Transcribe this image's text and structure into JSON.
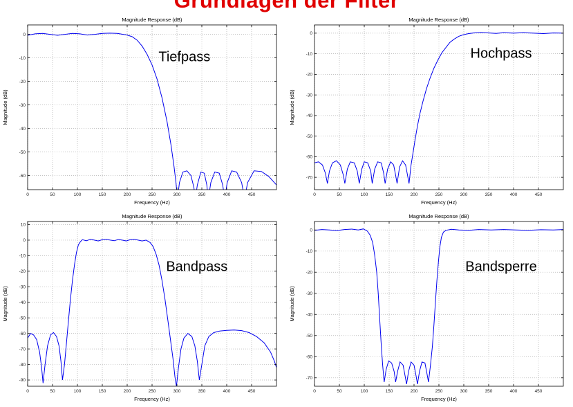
{
  "title": {
    "text": "Grundlagen der Filter",
    "color": "#e00000"
  },
  "chart_data": [
    {
      "type": "line",
      "name": "tiefpass",
      "title": "Magnitude Response (dB)",
      "xlabel": "Frequency (Hz)",
      "ylabel": "Magnitude (dB)",
      "line_color": "#0000ee",
      "grid": true,
      "legend_position": "none",
      "xlim": [
        0,
        500
      ],
      "ylim": [
        -66,
        4
      ],
      "xticks": [
        0,
        50,
        100,
        150,
        200,
        250,
        300,
        350,
        400,
        450
      ],
      "yticks": [
        0,
        -10,
        -20,
        -30,
        -40,
        -50,
        -60
      ],
      "annotation": {
        "text": "Tiefpass",
        "fx": 0.63,
        "fy": 0.22
      },
      "points": [
        [
          0,
          -0.4
        ],
        [
          15,
          0.2
        ],
        [
          30,
          0.4
        ],
        [
          45,
          0
        ],
        [
          60,
          -0.4
        ],
        [
          75,
          0
        ],
        [
          90,
          0.4
        ],
        [
          105,
          0.2
        ],
        [
          120,
          -0.3
        ],
        [
          135,
          0
        ],
        [
          150,
          0.4
        ],
        [
          165,
          0.5
        ],
        [
          180,
          0.4
        ],
        [
          192,
          0
        ],
        [
          200,
          -0.3
        ],
        [
          210,
          -1
        ],
        [
          220,
          -2.5
        ],
        [
          230,
          -5
        ],
        [
          240,
          -8.5
        ],
        [
          250,
          -13
        ],
        [
          260,
          -19
        ],
        [
          270,
          -27
        ],
        [
          280,
          -37
        ],
        [
          288,
          -47
        ],
        [
          294,
          -56
        ],
        [
          298,
          -63
        ],
        [
          301,
          -70
        ],
        [
          305,
          -63
        ],
        [
          312,
          -58.5
        ],
        [
          320,
          -58
        ],
        [
          328,
          -60
        ],
        [
          334,
          -65
        ],
        [
          337,
          -70
        ],
        [
          341,
          -64
        ],
        [
          348,
          -58.5
        ],
        [
          355,
          -59
        ],
        [
          360,
          -64
        ],
        [
          363,
          -70
        ],
        [
          368,
          -63
        ],
        [
          376,
          -58.5
        ],
        [
          385,
          -59
        ],
        [
          392,
          -64
        ],
        [
          396,
          -70
        ],
        [
          401,
          -63
        ],
        [
          410,
          -58
        ],
        [
          420,
          -58.5
        ],
        [
          430,
          -63
        ],
        [
          436,
          -70
        ],
        [
          442,
          -63
        ],
        [
          455,
          -58
        ],
        [
          470,
          -58.3
        ],
        [
          485,
          -60.5
        ],
        [
          500,
          -64
        ]
      ]
    },
    {
      "type": "line",
      "name": "hochpass",
      "title": "Magnitude Response (dB)",
      "xlabel": "Frequency (Hz)",
      "ylabel": "Magnitude (dB)",
      "line_color": "#0000ee",
      "grid": true,
      "legend_position": "none",
      "xlim": [
        0,
        500
      ],
      "ylim": [
        -76,
        4
      ],
      "xticks": [
        0,
        50,
        100,
        150,
        200,
        250,
        300,
        350,
        400,
        450
      ],
      "yticks": [
        0,
        -10,
        -20,
        -30,
        -40,
        -50,
        -60,
        -70
      ],
      "annotation": {
        "text": "Hochpass",
        "fx": 0.75,
        "fy": 0.2
      },
      "points": [
        [
          0,
          -63
        ],
        [
          8,
          -62.5
        ],
        [
          16,
          -64
        ],
        [
          22,
          -68
        ],
        [
          26,
          -73
        ],
        [
          30,
          -67
        ],
        [
          36,
          -63
        ],
        [
          44,
          -62
        ],
        [
          52,
          -64
        ],
        [
          58,
          -69
        ],
        [
          61,
          -73
        ],
        [
          66,
          -66
        ],
        [
          72,
          -62.5
        ],
        [
          80,
          -63
        ],
        [
          86,
          -67
        ],
        [
          90,
          -73
        ],
        [
          95,
          -66
        ],
        [
          100,
          -62.5
        ],
        [
          107,
          -63
        ],
        [
          113,
          -67
        ],
        [
          116,
          -73
        ],
        [
          121,
          -66
        ],
        [
          127,
          -62.5
        ],
        [
          134,
          -63
        ],
        [
          139,
          -68
        ],
        [
          142,
          -73
        ],
        [
          147,
          -66
        ],
        [
          153,
          -62.5
        ],
        [
          159,
          -64
        ],
        [
          163,
          -69
        ],
        [
          166,
          -73
        ],
        [
          171,
          -65
        ],
        [
          177,
          -62
        ],
        [
          183,
          -64
        ],
        [
          187,
          -69
        ],
        [
          190,
          -73
        ],
        [
          194,
          -64
        ],
        [
          198,
          -58
        ],
        [
          202,
          -52
        ],
        [
          207,
          -45
        ],
        [
          212,
          -39
        ],
        [
          218,
          -33
        ],
        [
          225,
          -27
        ],
        [
          232,
          -22
        ],
        [
          240,
          -17
        ],
        [
          248,
          -13
        ],
        [
          256,
          -9.5
        ],
        [
          264,
          -7
        ],
        [
          272,
          -4.5
        ],
        [
          280,
          -3
        ],
        [
          290,
          -1.5
        ],
        [
          300,
          -0.7
        ],
        [
          310,
          -0.2
        ],
        [
          320,
          0.1
        ],
        [
          335,
          0.3
        ],
        [
          350,
          0.1
        ],
        [
          365,
          -0.1
        ],
        [
          380,
          0.2
        ],
        [
          400,
          0
        ],
        [
          420,
          0.2
        ],
        [
          440,
          0
        ],
        [
          460,
          -0.2
        ],
        [
          480,
          0.1
        ],
        [
          500,
          0
        ]
      ]
    },
    {
      "type": "line",
      "name": "bandpass",
      "title": "Magnitude Response (dB)",
      "xlabel": "Frequency (Hz)",
      "ylabel": "Magnitude (dB)",
      "line_color": "#0000ee",
      "grid": true,
      "legend_position": "none",
      "xlim": [
        0,
        500
      ],
      "ylim": [
        -94,
        12
      ],
      "xticks": [
        0,
        50,
        100,
        150,
        200,
        250,
        300,
        350,
        400,
        450
      ],
      "yticks": [
        10,
        0,
        -10,
        -20,
        -30,
        -40,
        -50,
        -60,
        -70,
        -80,
        -90
      ],
      "annotation": {
        "text": "Bandpass",
        "fx": 0.68,
        "fy": 0.3
      },
      "points": [
        [
          0,
          -63
        ],
        [
          6,
          -60
        ],
        [
          12,
          -61
        ],
        [
          18,
          -64
        ],
        [
          24,
          -72
        ],
        [
          28,
          -82
        ],
        [
          31,
          -92
        ],
        [
          35,
          -80
        ],
        [
          40,
          -68
        ],
        [
          46,
          -61
        ],
        [
          52,
          -59.5
        ],
        [
          58,
          -62
        ],
        [
          63,
          -68
        ],
        [
          67,
          -78
        ],
        [
          70,
          -90
        ],
        [
          74,
          -80
        ],
        [
          78,
          -66
        ],
        [
          82,
          -52
        ],
        [
          86,
          -38
        ],
        [
          90,
          -26
        ],
        [
          94,
          -16
        ],
        [
          98,
          -8
        ],
        [
          102,
          -3
        ],
        [
          106,
          -1
        ],
        [
          110,
          0.3
        ],
        [
          118,
          -0.4
        ],
        [
          126,
          0.5
        ],
        [
          134,
          0
        ],
        [
          142,
          -0.5
        ],
        [
          150,
          0.3
        ],
        [
          158,
          0.5
        ],
        [
          166,
          0
        ],
        [
          174,
          -0.4
        ],
        [
          182,
          0.4
        ],
        [
          190,
          0
        ],
        [
          198,
          -0.5
        ],
        [
          206,
          0.3
        ],
        [
          214,
          0.5
        ],
        [
          222,
          0
        ],
        [
          230,
          -0.5
        ],
        [
          238,
          0
        ],
        [
          246,
          -1.5
        ],
        [
          252,
          -4
        ],
        [
          258,
          -9
        ],
        [
          264,
          -16
        ],
        [
          270,
          -26
        ],
        [
          276,
          -38
        ],
        [
          282,
          -52
        ],
        [
          287,
          -64
        ],
        [
          292,
          -76
        ],
        [
          296,
          -88
        ],
        [
          299,
          -94
        ],
        [
          303,
          -82
        ],
        [
          308,
          -70
        ],
        [
          314,
          -63
        ],
        [
          322,
          -60
        ],
        [
          330,
          -62
        ],
        [
          336,
          -68
        ],
        [
          341,
          -78
        ],
        [
          345,
          -90
        ],
        [
          350,
          -80
        ],
        [
          356,
          -68
        ],
        [
          364,
          -62
        ],
        [
          374,
          -59.5
        ],
        [
          386,
          -58.5
        ],
        [
          400,
          -58
        ],
        [
          415,
          -57.8
        ],
        [
          430,
          -58.2
        ],
        [
          445,
          -59.5
        ],
        [
          460,
          -62
        ],
        [
          475,
          -66
        ],
        [
          488,
          -72
        ],
        [
          496,
          -78
        ],
        [
          500,
          -82
        ]
      ]
    },
    {
      "type": "line",
      "name": "bandsperre",
      "title": "Magnitude Response (dB)",
      "xlabel": "Frequency (Hz)",
      "ylabel": "Magnitude (dB)",
      "line_color": "#0000ee",
      "grid": true,
      "legend_position": "none",
      "xlim": [
        0,
        500
      ],
      "ylim": [
        -74,
        4
      ],
      "xticks": [
        0,
        50,
        100,
        150,
        200,
        250,
        300,
        350,
        400,
        450
      ],
      "yticks": [
        0,
        -10,
        -20,
        -30,
        -40,
        -50,
        -60,
        -70
      ],
      "annotation": {
        "text": "Bandsperre",
        "fx": 0.75,
        "fy": 0.3
      },
      "points": [
        [
          0,
          -0.2
        ],
        [
          15,
          0.2
        ],
        [
          30,
          0
        ],
        [
          45,
          -0.3
        ],
        [
          60,
          0.2
        ],
        [
          75,
          0.4
        ],
        [
          88,
          0
        ],
        [
          98,
          0.5
        ],
        [
          106,
          -0.5
        ],
        [
          112,
          -2.5
        ],
        [
          117,
          -6
        ],
        [
          121,
          -12
        ],
        [
          125,
          -20
        ],
        [
          128,
          -30
        ],
        [
          131,
          -42
        ],
        [
          134,
          -54
        ],
        [
          137,
          -64
        ],
        [
          140,
          -72
        ],
        [
          144,
          -66
        ],
        [
          149,
          -62
        ],
        [
          155,
          -63
        ],
        [
          160,
          -67
        ],
        [
          163,
          -72
        ],
        [
          167,
          -67
        ],
        [
          172,
          -62.5
        ],
        [
          178,
          -64
        ],
        [
          182,
          -69
        ],
        [
          185,
          -73
        ],
        [
          189,
          -67
        ],
        [
          194,
          -62.5
        ],
        [
          200,
          -64
        ],
        [
          204,
          -69
        ],
        [
          207,
          -73
        ],
        [
          211,
          -67
        ],
        [
          216,
          -62.5
        ],
        [
          222,
          -63
        ],
        [
          226,
          -68
        ],
        [
          229,
          -72
        ],
        [
          233,
          -64
        ],
        [
          237,
          -55
        ],
        [
          240,
          -45
        ],
        [
          243,
          -34
        ],
        [
          246,
          -24
        ],
        [
          249,
          -15
        ],
        [
          252,
          -8
        ],
        [
          255,
          -3.5
        ],
        [
          259,
          -1
        ],
        [
          264,
          -0.2
        ],
        [
          275,
          0.3
        ],
        [
          290,
          0
        ],
        [
          310,
          -0.2
        ],
        [
          330,
          0.2
        ],
        [
          355,
          0
        ],
        [
          380,
          0.2
        ],
        [
          405,
          0
        ],
        [
          430,
          -0.2
        ],
        [
          455,
          0.1
        ],
        [
          480,
          0
        ],
        [
          500,
          0.2
        ]
      ]
    }
  ]
}
